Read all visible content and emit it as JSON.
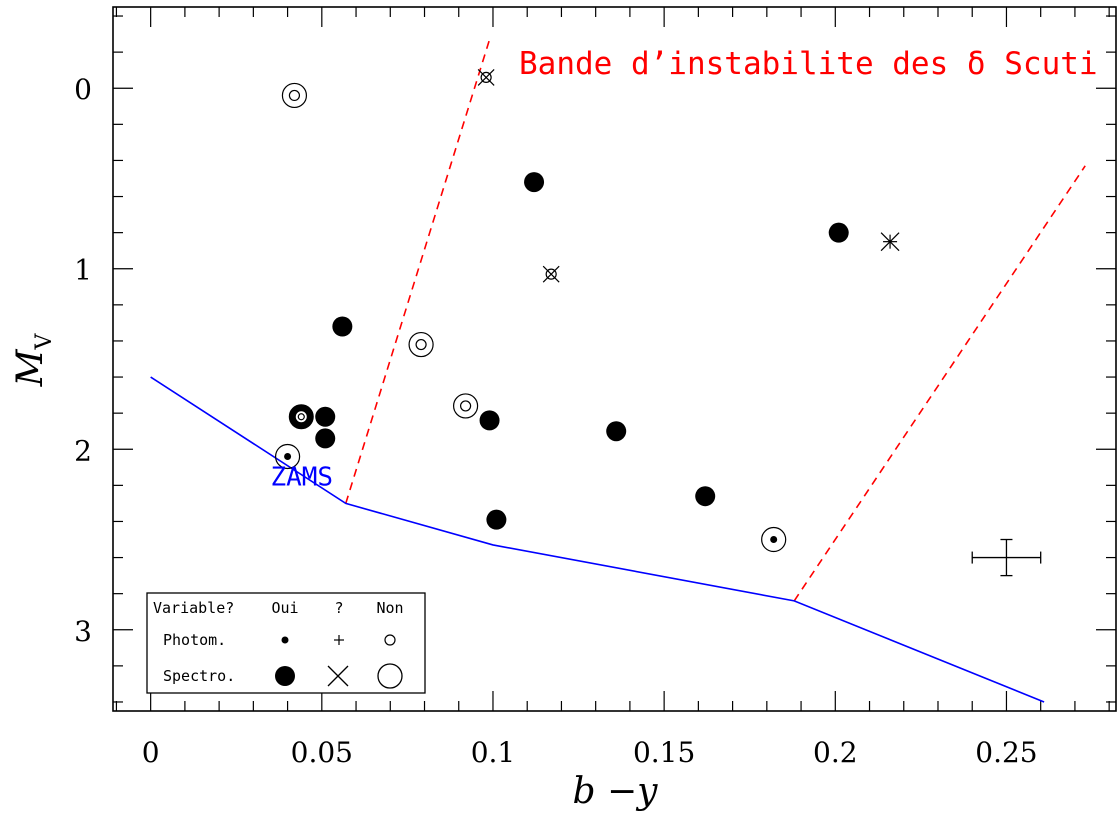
{
  "chart_data": {
    "type": "scatter",
    "xlabel": "b −y",
    "ylabel_main": "M",
    "ylabel_sub": "V",
    "xlim": [
      -0.011,
      0.282
    ],
    "ylim": [
      3.45,
      -0.45
    ],
    "y_inverted": true,
    "x_ticks": [
      {
        "v": 0,
        "label": "0"
      },
      {
        "v": 0.05,
        "label": "0.05"
      },
      {
        "v": 0.1,
        "label": "0.1"
      },
      {
        "v": 0.15,
        "label": "0.15"
      },
      {
        "v": 0.2,
        "label": "0.2"
      },
      {
        "v": 0.25,
        "label": "0.25"
      }
    ],
    "y_ticks": [
      {
        "v": 0,
        "label": "0"
      },
      {
        "v": 1,
        "label": "1"
      },
      {
        "v": 2,
        "label": "2"
      },
      {
        "v": 3,
        "label": "3"
      }
    ],
    "band_label": "Bande d’instabilite des δ Scuti",
    "band_color": "#ff0000",
    "band_edges": [
      {
        "name": "blue-edge",
        "points": [
          [
            0.057,
            2.3
          ],
          [
            0.099,
            -0.27
          ]
        ]
      },
      {
        "name": "red-edge",
        "points": [
          [
            0.188,
            2.84
          ],
          [
            0.273,
            0.43
          ]
        ]
      }
    ],
    "zams_label": "ZAMS",
    "zams_label_at": [
      0.035,
      2.2
    ],
    "zams_color": "#0000ff",
    "zams": [
      [
        0.0,
        1.6
      ],
      [
        0.057,
        2.3
      ],
      [
        0.1,
        2.53
      ],
      [
        0.188,
        2.84
      ],
      [
        0.261,
        3.4
      ]
    ],
    "points": [
      {
        "x": 0.042,
        "y": 0.04,
        "type": "photom-non-spectro-non"
      },
      {
        "x": 0.098,
        "y": -0.06,
        "type": "photom-non-spectro-maybe"
      },
      {
        "x": 0.117,
        "y": 1.03,
        "type": "photom-non-spectro-maybe"
      },
      {
        "x": 0.216,
        "y": 0.85,
        "type": "photom-maybe-spectro-maybe"
      },
      {
        "x": 0.079,
        "y": 1.42,
        "type": "photom-non-spectro-non"
      },
      {
        "x": 0.092,
        "y": 1.76,
        "type": "photom-non-spectro-non"
      },
      {
        "x": 0.04,
        "y": 2.04,
        "type": "photom-oui-spectro-non"
      },
      {
        "x": 0.182,
        "y": 2.5,
        "type": "photom-oui-spectro-non"
      },
      {
        "x": 0.044,
        "y": 1.82,
        "type": "photom-non-spectro-oui-bold"
      },
      {
        "x": 0.112,
        "y": 0.52,
        "type": "spectro-oui"
      },
      {
        "x": 0.201,
        "y": 0.8,
        "type": "spectro-oui"
      },
      {
        "x": 0.056,
        "y": 1.32,
        "type": "spectro-oui"
      },
      {
        "x": 0.051,
        "y": 1.82,
        "type": "spectro-oui"
      },
      {
        "x": 0.051,
        "y": 1.94,
        "type": "spectro-oui"
      },
      {
        "x": 0.099,
        "y": 1.84,
        "type": "spectro-oui"
      },
      {
        "x": 0.136,
        "y": 1.9,
        "type": "spectro-oui"
      },
      {
        "x": 0.101,
        "y": 2.39,
        "type": "spectro-oui"
      },
      {
        "x": 0.162,
        "y": 2.26,
        "type": "spectro-oui"
      }
    ],
    "error_bar": {
      "x": 0.25,
      "y": 2.6,
      "dx": 0.01,
      "dy": 0.1
    },
    "legend": {
      "header": "Variable?",
      "columns": [
        "Oui",
        "?",
        "Non"
      ],
      "rows": [
        "Photom.",
        "Spectro."
      ]
    }
  }
}
